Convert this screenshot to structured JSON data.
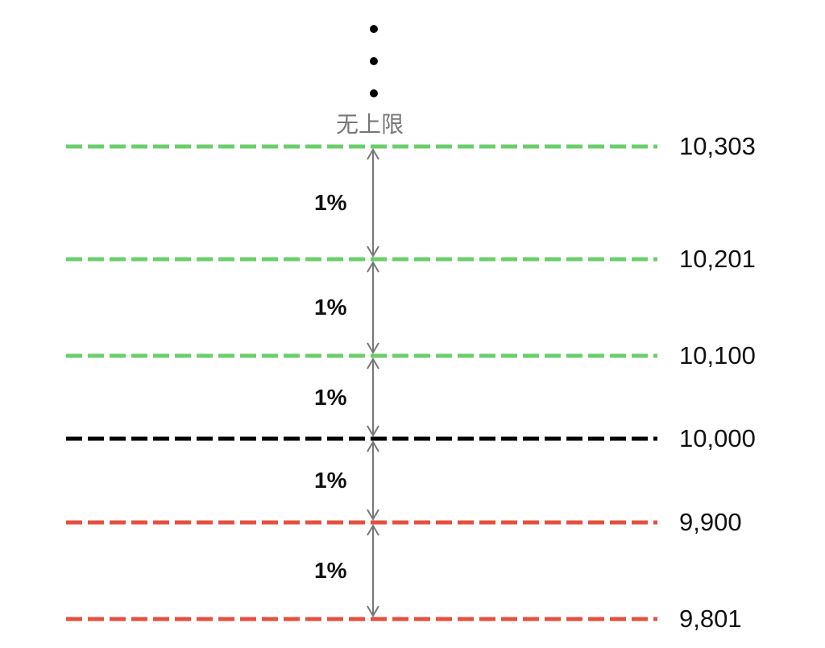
{
  "top_label": "无上限",
  "levels": [
    {
      "value": "10,303",
      "color": "#6bcf6b"
    },
    {
      "value": "10,201",
      "color": "#6bcf6b"
    },
    {
      "value": "10,100",
      "color": "#6bcf6b"
    },
    {
      "value": "10,000",
      "color": "#000000"
    },
    {
      "value": "9,900",
      "color": "#e5503f"
    },
    {
      "value": "9,801",
      "color": "#e5503f"
    }
  ],
  "intervals": [
    "1%",
    "1%",
    "1%",
    "1%",
    "1%"
  ],
  "arrow_color": "#777777"
}
